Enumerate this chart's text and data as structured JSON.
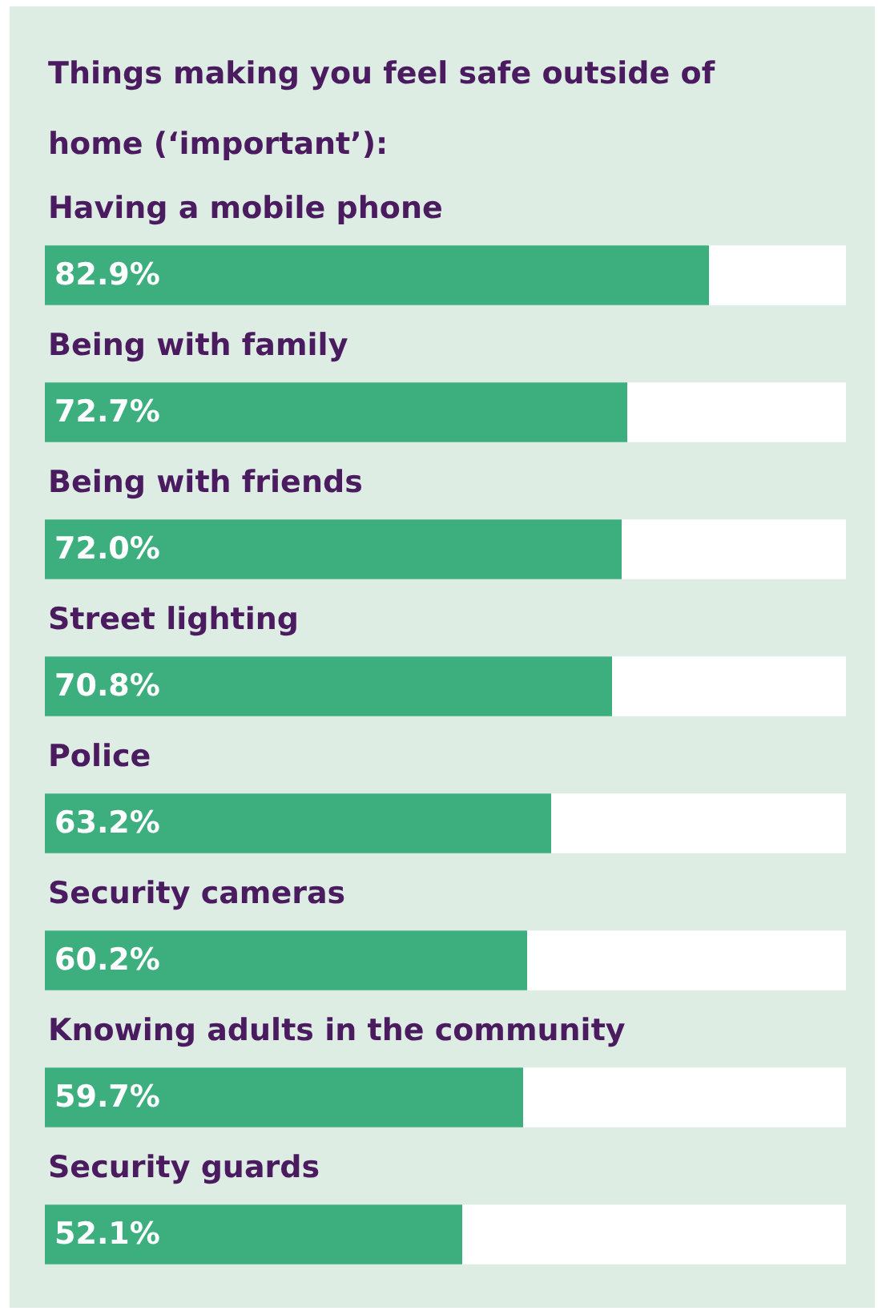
{
  "chart_data": {
    "type": "bar",
    "orientation": "horizontal",
    "title": "Things making you feel safe outside of home (‘important’):",
    "categories": [
      "Having a mobile phone",
      "Being with family",
      "Being with friends",
      "Street lighting",
      "Police",
      "Security cameras",
      "Knowing adults in the community",
      "Security guards"
    ],
    "values": [
      82.9,
      72.7,
      72.0,
      70.8,
      63.2,
      60.2,
      59.7,
      52.1
    ],
    "value_labels": [
      "82.9%",
      "72.7%",
      "72.0%",
      "70.8%",
      "63.2%",
      "60.2%",
      "59.7%",
      "52.1%"
    ],
    "color": "#3daf7f",
    "xlim": [
      0,
      100
    ],
    "tick_labels": false
  }
}
